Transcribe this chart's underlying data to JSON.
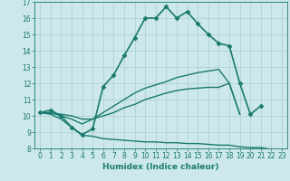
{
  "xlabel": "Humidex (Indice chaleur)",
  "background_color": "#cce8ea",
  "grid_color": "#aacdd0",
  "line_color": "#1a7a6e",
  "xlim": [
    -0.5,
    23.5
  ],
  "ylim": [
    8,
    17
  ],
  "xticks": [
    0,
    1,
    2,
    3,
    4,
    5,
    6,
    7,
    8,
    9,
    10,
    11,
    12,
    13,
    14,
    15,
    16,
    17,
    18,
    19,
    20,
    21,
    22,
    23
  ],
  "yticks": [
    8,
    9,
    10,
    11,
    12,
    13,
    14,
    15,
    16,
    17
  ],
  "series": [
    {
      "x": [
        0,
        1,
        2,
        3,
        4,
        5,
        6,
        7,
        8,
        9,
        10,
        11,
        12,
        13,
        14,
        15,
        16,
        17,
        18,
        19,
        20,
        21
      ],
      "y": [
        10.2,
        10.35,
        10.0,
        9.3,
        8.85,
        9.2,
        11.8,
        12.5,
        13.7,
        14.8,
        16.0,
        16.0,
        16.7,
        16.0,
        16.4,
        15.65,
        15.0,
        14.45,
        14.3,
        12.0,
        10.1,
        10.6
      ],
      "marker": "D",
      "markersize": 2.5,
      "linewidth": 1.2,
      "with_markers": true
    },
    {
      "x": [
        0,
        1,
        2,
        3,
        4,
        5,
        6,
        7,
        8,
        9,
        10,
        11,
        12,
        13,
        14,
        15,
        16,
        17,
        18,
        19
      ],
      "y": [
        10.2,
        10.2,
        10.0,
        9.8,
        9.5,
        9.8,
        10.2,
        10.6,
        11.0,
        11.4,
        11.7,
        11.9,
        12.1,
        12.35,
        12.5,
        12.65,
        12.75,
        12.85,
        12.0,
        10.1
      ],
      "marker": null,
      "markersize": 0,
      "linewidth": 1.0,
      "with_markers": false
    },
    {
      "x": [
        0,
        1,
        2,
        3,
        4,
        5,
        6,
        7,
        8,
        9,
        10,
        11,
        12,
        13,
        14,
        15,
        16,
        17,
        18,
        19,
        20,
        21
      ],
      "y": [
        10.2,
        10.15,
        10.1,
        10.0,
        9.8,
        9.8,
        10.0,
        10.2,
        10.5,
        10.7,
        11.0,
        11.2,
        11.4,
        11.55,
        11.65,
        11.7,
        11.75,
        11.75,
        12.0,
        10.1,
        null,
        null
      ],
      "marker": null,
      "markersize": 0,
      "linewidth": 1.0,
      "with_markers": false
    },
    {
      "x": [
        0,
        1,
        2,
        3,
        4,
        5,
        6,
        7,
        8,
        9,
        10,
        11,
        12,
        13,
        14,
        15,
        16,
        17,
        18,
        19,
        20,
        21,
        22,
        23
      ],
      "y": [
        10.2,
        10.1,
        9.8,
        9.3,
        8.8,
        8.75,
        8.6,
        8.55,
        8.5,
        8.45,
        8.4,
        8.4,
        8.35,
        8.35,
        8.3,
        8.3,
        8.25,
        8.2,
        8.2,
        8.1,
        8.05,
        8.05,
        7.95,
        7.8
      ],
      "marker": null,
      "markersize": 0,
      "linewidth": 1.0,
      "with_markers": false
    }
  ]
}
